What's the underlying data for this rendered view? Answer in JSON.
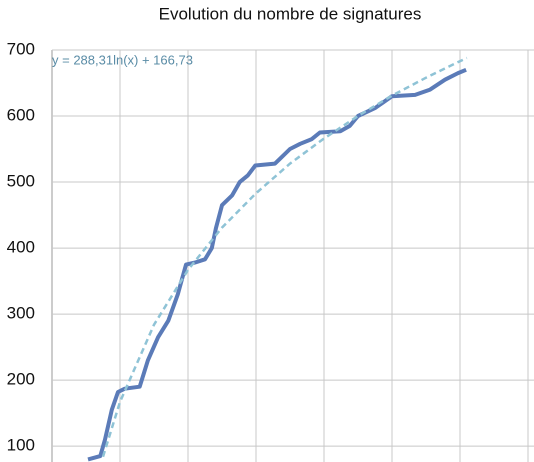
{
  "chart_data": {
    "type": "line",
    "title": "Evolution du nombre de signatures",
    "ylim": [
      76,
      700
    ],
    "yticks": [
      100,
      200,
      300,
      400,
      500,
      600,
      700
    ],
    "grid": true,
    "xlim": [
      0,
      7.2
    ],
    "series": [
      {
        "color": "#5b7bb8",
        "x": [
          0.53,
          0.71,
          0.78,
          0.88,
          0.97,
          1.07,
          1.29,
          1.41,
          1.56,
          1.71,
          1.85,
          1.97,
          2.1,
          2.25,
          2.35,
          2.41,
          2.5,
          2.65,
          2.76,
          2.88,
          2.99,
          3.28,
          3.35,
          3.5,
          3.65,
          3.82,
          3.94,
          4.24,
          4.38,
          4.5,
          4.75,
          5.0,
          5.34,
          5.56,
          5.78,
          5.97,
          6.09
        ],
        "values": [
          80,
          85,
          110,
          155,
          182,
          187,
          190,
          230,
          265,
          290,
          330,
          375,
          378,
          383,
          400,
          430,
          465,
          480,
          500,
          510,
          525,
          528,
          535,
          550,
          558,
          565,
          575,
          577,
          585,
          600,
          612,
          630,
          632,
          640,
          655,
          665,
          670
        ]
      }
    ],
    "trendline": {
      "label": "y = 288,31ln(x) + 166,73",
      "color": "#8fc3d6",
      "x": [
        0.75,
        1,
        1.5,
        2,
        2.5,
        3,
        3.5,
        4,
        4.5,
        5,
        5.5,
        6.1
      ],
      "values": [
        84,
        167,
        284,
        367,
        431,
        483,
        528,
        566,
        600,
        631,
        658,
        688
      ]
    }
  }
}
